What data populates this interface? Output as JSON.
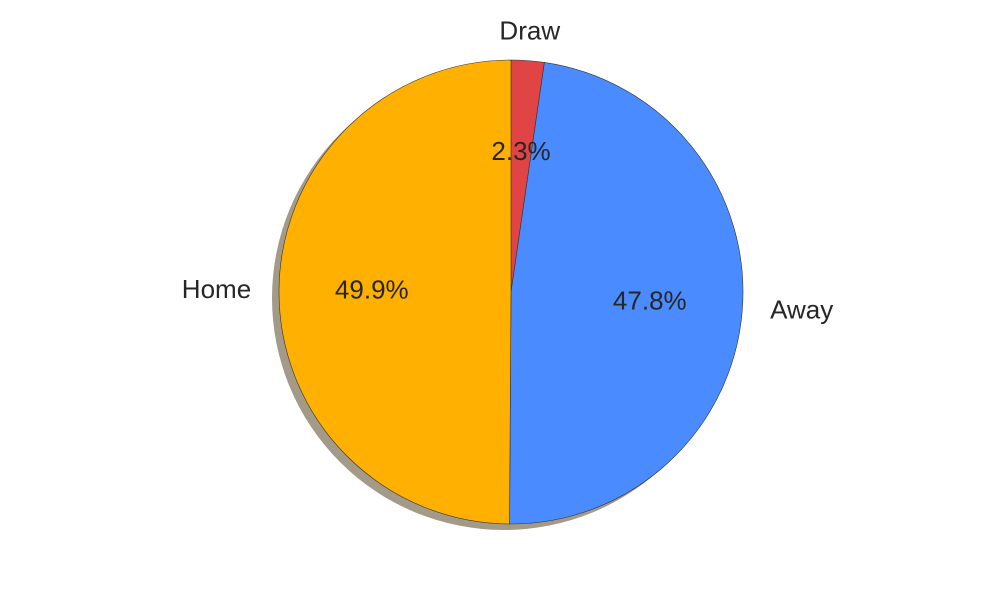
{
  "chart_data": {
    "type": "pie",
    "title": "",
    "shadow": true,
    "start_angle_deg": 90,
    "direction": "clockwise",
    "slices": [
      {
        "label": "Draw",
        "value": 2.3,
        "pct_label": "2.3%",
        "color": "#E04444"
      },
      {
        "label": "Away",
        "value": 47.8,
        "pct_label": "47.8%",
        "color": "#4A8BFF"
      },
      {
        "label": "Home",
        "value": 49.9,
        "pct_label": "49.9%",
        "color": "#FFB000"
      }
    ]
  }
}
